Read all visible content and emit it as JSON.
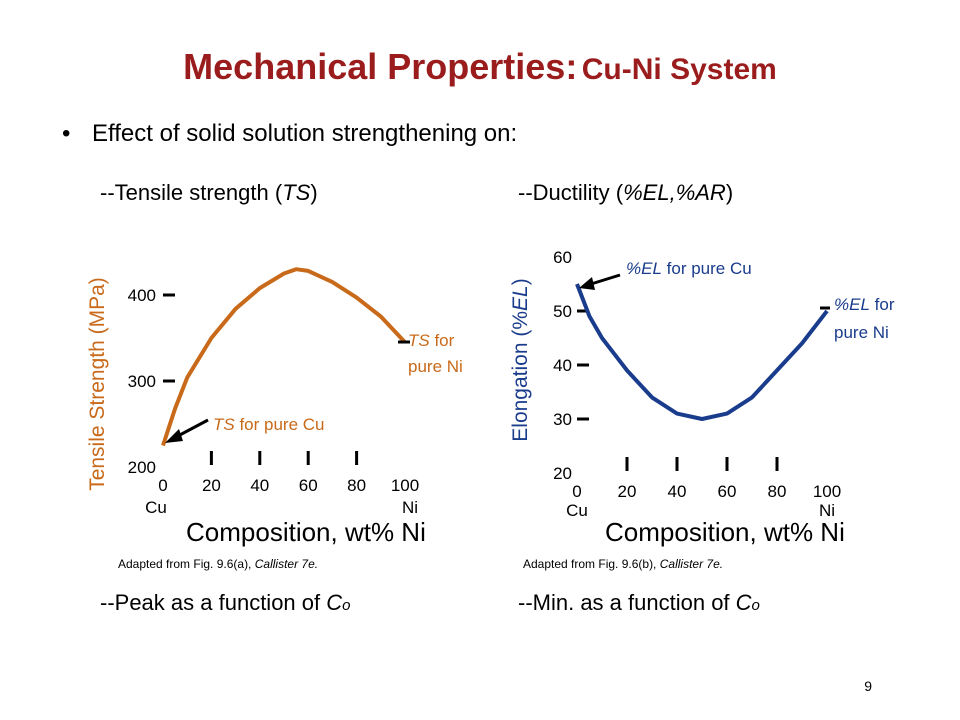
{
  "title": {
    "main": "Mechanical Properties:",
    "sub": "Cu-Ni System"
  },
  "bullet": {
    "symbol": "•",
    "text": "Effect of solid solution strengthening on:"
  },
  "left": {
    "heading_prefix": "--Tensile strength (",
    "heading_italic": "TS",
    "heading_suffix": ")",
    "xlabel": "Composition, wt% Ni",
    "adapted_prefix": "Adapted from Fig. 9.6(a), ",
    "adapted_italic": "Callister 7e.",
    "footer_prefix": "--Peak as a function of ",
    "footer_c": "C",
    "footer_sub": "o"
  },
  "right": {
    "heading_prefix": "--Ductility (",
    "heading_italic": "%EL,%AR",
    "heading_suffix": ")",
    "xlabel": "Composition, wt% Ni",
    "adapted_prefix": "Adapted from Fig. 9.6(b), ",
    "adapted_italic": "Callister 7e.",
    "footer_prefix": "--Min. as a function of ",
    "footer_c": "C",
    "footer_sub": "o"
  },
  "page_number": "9",
  "colors": {
    "title": "#9b1c1c",
    "ts_curve": "#c86a1a",
    "el_curve": "#1a3c8c"
  },
  "chart_data": [
    {
      "type": "line",
      "ylabel": "Tensile Strength (MPa)",
      "xlabel": "Composition, wt% Ni",
      "xlim": [
        0,
        100
      ],
      "ylim": [
        200,
        450
      ],
      "x_ticks": [
        "0",
        "20",
        "40",
        "60",
        "80",
        "100"
      ],
      "y_ticks": [
        "200",
        "300",
        "400"
      ],
      "x_end_labels": [
        "Cu",
        "Ni"
      ],
      "series": [
        {
          "x": [
            0,
            5,
            10,
            20,
            30,
            40,
            50,
            55,
            60,
            70,
            80,
            90,
            100
          ],
          "y": [
            225,
            268,
            304,
            350,
            384,
            408,
            425,
            430,
            428,
            415,
            397,
            375,
            345
          ]
        }
      ],
      "annotations": [
        {
          "text_italic": "TS",
          "text": " for pure Cu",
          "x": 0,
          "y": 225
        },
        {
          "text_italic": "TS",
          "text": " for",
          "line2": "pure Ni",
          "x": 100,
          "y": 345
        }
      ]
    },
    {
      "type": "line",
      "ylabel": "Elongation (%EL)",
      "xlabel": "Composition, wt% Ni",
      "xlim": [
        0,
        100
      ],
      "ylim": [
        20,
        60
      ],
      "x_ticks": [
        "0",
        "20",
        "40",
        "60",
        "80",
        "100"
      ],
      "y_ticks": [
        "20",
        "30",
        "40",
        "50",
        "60"
      ],
      "x_end_labels": [
        "Cu",
        "Ni"
      ],
      "series": [
        {
          "x": [
            0,
            5,
            10,
            15,
            20,
            30,
            40,
            50,
            60,
            70,
            80,
            90,
            100
          ],
          "y": [
            55,
            49,
            45,
            42,
            39,
            34,
            31,
            30,
            31,
            34,
            39,
            44,
            50
          ]
        }
      ],
      "annotations": [
        {
          "text_italic": "%EL",
          "text": " for pure Cu",
          "x": 0,
          "y": 55
        },
        {
          "text_italic": "%EL",
          "text": " for",
          "line2": "pure Ni",
          "x": 100,
          "y": 50
        }
      ]
    }
  ]
}
